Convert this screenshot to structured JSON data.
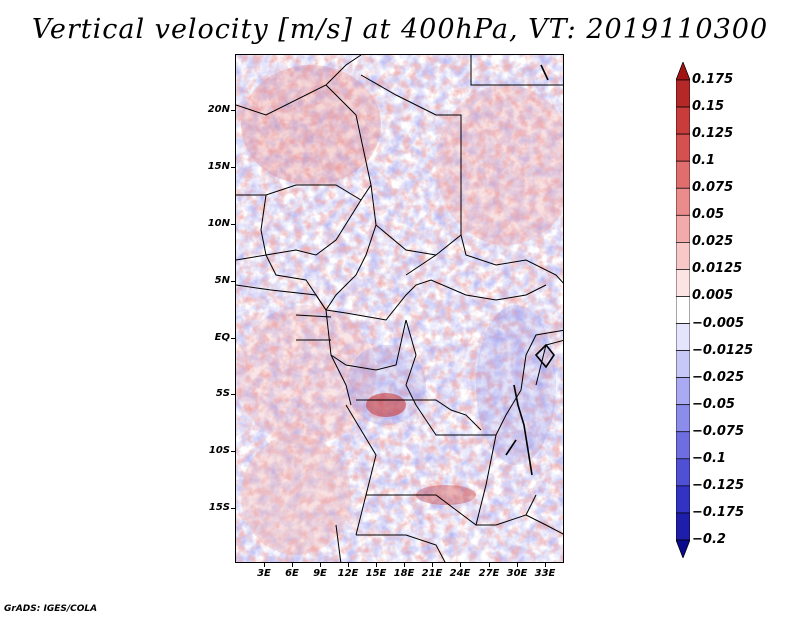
{
  "title": "Vertical velocity [m/s] at 400hPa, VT: 2019110300",
  "credit": "GrADS: IGES/COLA",
  "lat_labels": [
    "20N",
    "15N",
    "10N",
    "5N",
    "EQ",
    "5S",
    "10S",
    "15S"
  ],
  "lon_labels": [
    "3E",
    "6E",
    "9E",
    "12E",
    "15E",
    "18E",
    "21E",
    "24E",
    "27E",
    "30E",
    "33E"
  ],
  "colorbar": {
    "labels": [
      "0.175",
      "0.15",
      "0.125",
      "0.1",
      "0.075",
      "0.05",
      "0.025",
      "0.0125",
      "0.005",
      "−0.005",
      "−0.0125",
      "−0.025",
      "−0.05",
      "−0.075",
      "−0.1",
      "−0.125",
      "−0.175",
      "−0.2"
    ],
    "colors": [
      "#a01414",
      "#b42828",
      "#c83c3c",
      "#d55050",
      "#e16e6e",
      "#eb8c8c",
      "#f3aaaa",
      "#f8c8c8",
      "#fce4e4",
      "#ffffff",
      "#e4e4fc",
      "#c8c8f8",
      "#aaaaf2",
      "#8c8ceb",
      "#6e6ee1",
      "#5050d5",
      "#3232c3",
      "#1e1eaa",
      "#0a0a8c"
    ]
  }
}
